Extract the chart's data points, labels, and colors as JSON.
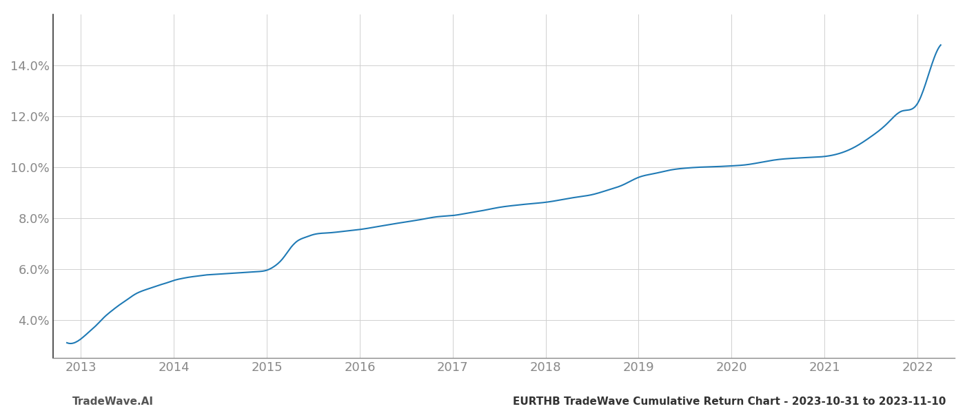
{
  "title": "",
  "footer_left": "TradeWave.AI",
  "footer_right": "EURTHB TradeWave Cumulative Return Chart - 2023-10-31 to 2023-11-10",
  "line_color": "#1f7ab5",
  "background_color": "#ffffff",
  "grid_color": "#d0d0d0",
  "x_years": [
    2013,
    2014,
    2015,
    2016,
    2017,
    2018,
    2019,
    2020,
    2021,
    2022
  ],
  "x_data": [
    2012.85,
    2013.0,
    2013.08,
    2013.17,
    2013.25,
    2013.33,
    2013.42,
    2013.5,
    2013.58,
    2013.67,
    2013.75,
    2013.83,
    2013.92,
    2014.0,
    2014.08,
    2014.17,
    2014.25,
    2014.33,
    2014.42,
    2014.5,
    2014.58,
    2014.67,
    2014.75,
    2014.83,
    2014.92,
    2015.0,
    2015.08,
    2015.17,
    2015.25,
    2015.33,
    2015.42,
    2015.5,
    2015.67,
    2015.83,
    2016.0,
    2016.17,
    2016.33,
    2016.5,
    2016.67,
    2016.83,
    2017.0,
    2017.17,
    2017.33,
    2017.5,
    2017.67,
    2017.83,
    2018.0,
    2018.17,
    2018.33,
    2018.5,
    2018.67,
    2018.83,
    2019.0,
    2019.17,
    2019.33,
    2019.5,
    2019.67,
    2019.83,
    2020.0,
    2020.17,
    2020.33,
    2020.5,
    2020.67,
    2020.83,
    2021.0,
    2021.17,
    2021.33,
    2021.5,
    2021.67,
    2021.83,
    2022.0,
    2022.08,
    2022.17,
    2022.25
  ],
  "y_data": [
    3.1,
    3.25,
    3.5,
    3.8,
    4.1,
    4.35,
    4.6,
    4.8,
    5.0,
    5.15,
    5.25,
    5.35,
    5.45,
    5.55,
    5.62,
    5.68,
    5.72,
    5.76,
    5.78,
    5.8,
    5.82,
    5.84,
    5.86,
    5.88,
    5.9,
    5.95,
    6.1,
    6.4,
    6.8,
    7.1,
    7.25,
    7.35,
    7.42,
    7.48,
    7.55,
    7.65,
    7.75,
    7.85,
    7.95,
    8.05,
    8.1,
    8.2,
    8.3,
    8.42,
    8.5,
    8.56,
    8.62,
    8.72,
    8.82,
    8.92,
    9.1,
    9.3,
    9.6,
    9.75,
    9.88,
    9.96,
    10.0,
    10.02,
    10.05,
    10.1,
    10.2,
    10.3,
    10.35,
    10.38,
    10.42,
    10.55,
    10.8,
    11.2,
    11.7,
    12.2,
    12.5,
    13.2,
    14.2,
    14.8
  ],
  "xlim": [
    2012.7,
    2022.4
  ],
  "ylim": [
    2.5,
    16.0
  ],
  "yticks": [
    4.0,
    6.0,
    8.0,
    10.0,
    12.0,
    14.0
  ],
  "footer_fontsize": 11,
  "tick_fontsize": 13,
  "tick_color": "#888888",
  "left_spine_color": "#333333",
  "bottom_spine_color": "#888888"
}
